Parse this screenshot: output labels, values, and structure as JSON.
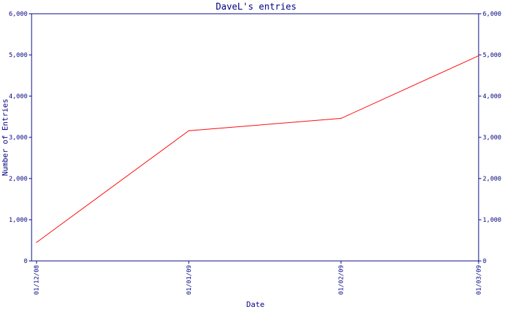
{
  "chart_data": {
    "type": "line",
    "title": "DaveL's entries",
    "xlabel": "Date",
    "ylabel": "Number of Entries",
    "ylim": [
      0,
      6000
    ],
    "y_ticks": [
      0,
      1000,
      2000,
      3000,
      4000,
      5000,
      6000
    ],
    "y_tick_labels": [
      "0",
      "1,000",
      "2,000",
      "3,000",
      "4,000",
      "5,000",
      "6,000"
    ],
    "y_axis_right": true,
    "x_ticks": [
      "2008-12-01",
      "2009-01-01",
      "2009-02-01",
      "2009-03-01"
    ],
    "x_tick_labels": [
      "01/12/08",
      "01/01/09",
      "01/02/09",
      "01/03/09"
    ],
    "x_range": [
      "2008-11-30",
      "2009-03-01"
    ],
    "grid": false,
    "series": [
      {
        "color": "#ff0000",
        "points": [
          {
            "x": "2008-12-01",
            "y": 450
          },
          {
            "x": "2009-01-01",
            "y": 3160
          },
          {
            "x": "2009-02-01",
            "y": 3460
          },
          {
            "x": "2009-03-01",
            "y": 4980
          }
        ]
      }
    ]
  },
  "colors": {
    "axis": "#000080",
    "line": "#ff0000",
    "background": "#ffffff"
  }
}
